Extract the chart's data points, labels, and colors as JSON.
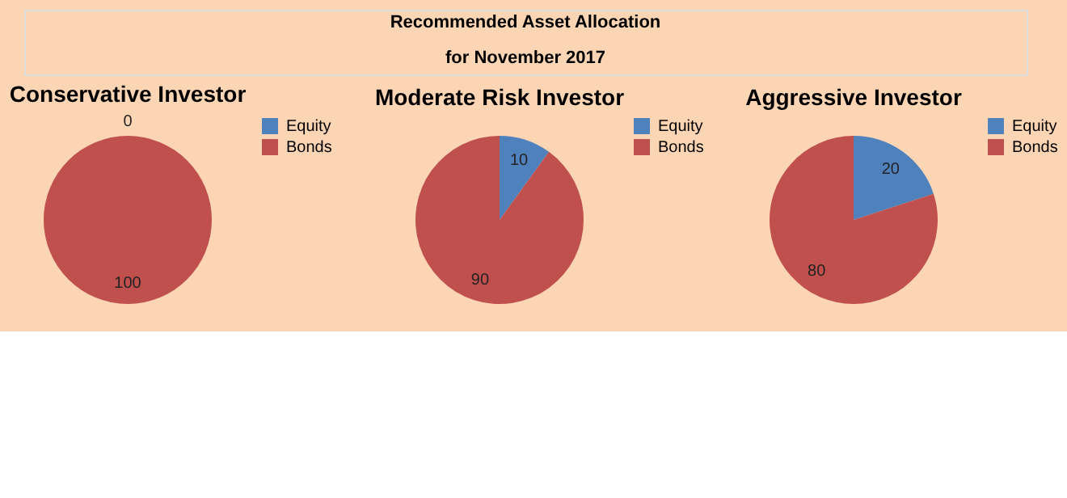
{
  "chart_data": [
    {
      "type": "other",
      "title": "Recommended Asset Allocation",
      "subtitle": "for November 2017"
    },
    {
      "type": "pie",
      "title": "Conservative Investor",
      "categories": [
        "Equity",
        "Bonds"
      ],
      "values": [
        0,
        100
      ],
      "colors": [
        "#4f81bd",
        "#c0504d"
      ],
      "value_labels": [
        "0",
        "100"
      ],
      "legend": "right"
    },
    {
      "type": "pie",
      "title": "Moderate Risk Investor",
      "categories": [
        "Equity",
        "Bonds"
      ],
      "values": [
        10,
        90
      ],
      "colors": [
        "#4f81bd",
        "#c0504d"
      ],
      "data_labels": true,
      "legend": "right"
    },
    {
      "type": "pie",
      "title": "Aggressive Investor",
      "categories": [
        "Equity",
        "Bonds"
      ],
      "values": [
        20,
        80
      ],
      "colors": [
        "#4f81bd",
        "#c0504d"
      ],
      "data_labels": true,
      "legend": "right"
    }
  ]
}
